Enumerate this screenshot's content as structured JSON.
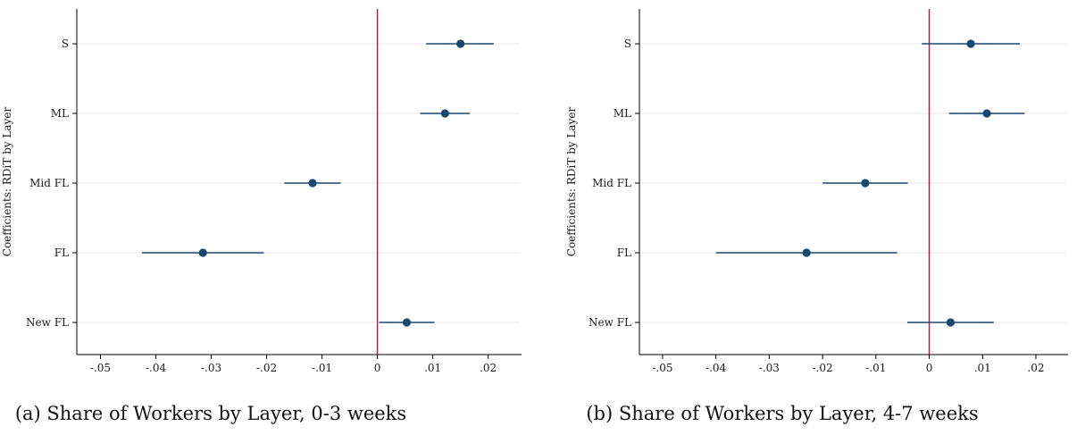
{
  "colors": {
    "marker": "#1a476f",
    "ci_line": "#1a476f",
    "zero_line": "#c8102e",
    "grid": "#e8e8e8",
    "axis": "#000000",
    "background": "#ffffff"
  },
  "chart_data": [
    {
      "type": "scatter",
      "subtype": "coefficient-plot",
      "caption": "(a) Share of Workers by Layer, 0-3 weeks",
      "ylabel": "Coefficients: RDiT by Layer",
      "xlabel": "",
      "categories": [
        "S",
        "ML",
        "Mid FL",
        "FL",
        "New FL"
      ],
      "estimates": [
        0.015,
        0.0122,
        -0.0117,
        -0.0315,
        0.0053
      ],
      "ci_low": [
        0.0088,
        0.0077,
        -0.0168,
        -0.0425,
        0.0003
      ],
      "ci_high": [
        0.021,
        0.0167,
        -0.0066,
        -0.0205,
        0.0103
      ],
      "xlim": [
        -0.0525,
        0.0257
      ],
      "xticks": [
        -0.05,
        -0.04,
        -0.03,
        -0.02,
        -0.01,
        0,
        0.01,
        0.02
      ],
      "xtick_labels": [
        "-.05",
        "-.04",
        "-.03",
        "-.02",
        "-.01",
        "0",
        ".01",
        ".02"
      ],
      "reference_line": 0,
      "grid": "horizontal"
    },
    {
      "type": "scatter",
      "subtype": "coefficient-plot",
      "caption": "(b) Share of Workers by Layer, 4-7 weeks",
      "ylabel": "Coefficients: RDiT by Layer",
      "xlabel": "",
      "categories": [
        "S",
        "ML",
        "Mid FL",
        "FL",
        "New FL"
      ],
      "estimates": [
        0.0078,
        0.0108,
        -0.012,
        -0.023,
        0.004
      ],
      "ci_low": [
        -0.0014,
        0.0037,
        -0.02,
        -0.04,
        -0.0041
      ],
      "ci_high": [
        0.017,
        0.0179,
        -0.004,
        -0.006,
        0.0121
      ],
      "xlim": [
        -0.0525,
        0.0257
      ],
      "xticks": [
        -0.05,
        -0.04,
        -0.03,
        -0.02,
        -0.01,
        0,
        0.01,
        0.02
      ],
      "xtick_labels": [
        "-.05",
        "-.04",
        "-.03",
        "-.02",
        "-.01",
        "0",
        ".01",
        ".02"
      ],
      "reference_line": 0,
      "grid": "horizontal"
    }
  ]
}
